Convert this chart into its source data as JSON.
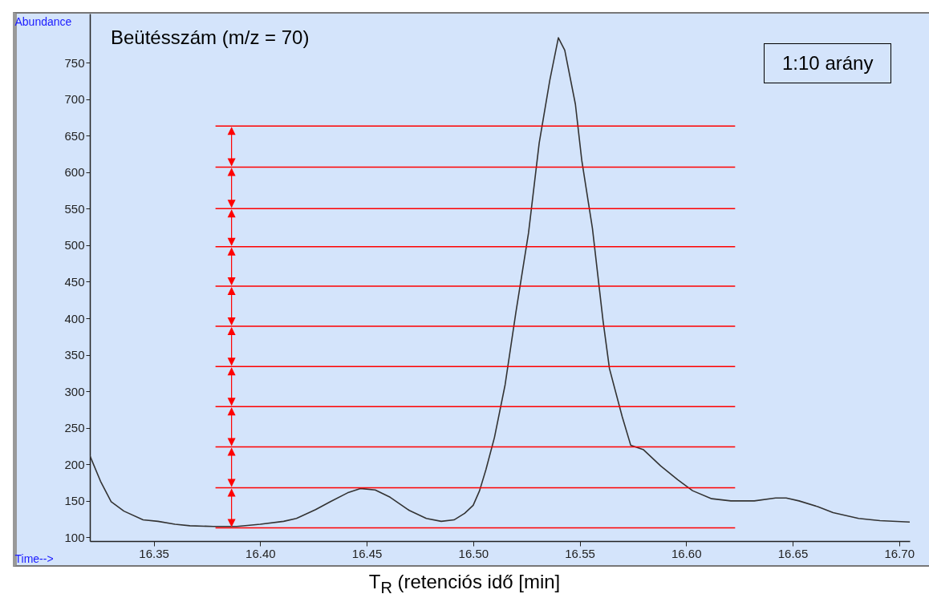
{
  "chart_data": {
    "type": "line",
    "xlabel": "Time-->",
    "ylabel": "Abundance",
    "annotations": [
      "Beütésszám (m/z = 70)",
      "1:10 arány",
      "T$_{R}$ (retenciós idő [min]"
    ],
    "xlim": [
      16.32,
      16.705
    ],
    "ylim": [
      95,
      817
    ],
    "xticks": [
      {
        "value": 16.35,
        "label": "16.35"
      },
      {
        "value": 16.4,
        "label": "16.40"
      },
      {
        "value": 16.45,
        "label": "16.45"
      },
      {
        "value": 16.5,
        "label": "16.50"
      },
      {
        "value": 16.55,
        "label": "16.55"
      },
      {
        "value": 16.6,
        "label": "16.60"
      },
      {
        "value": 16.65,
        "label": "16.65"
      },
      {
        "value": 16.7,
        "label": "16.70"
      }
    ],
    "yticks": [
      100,
      150,
      200,
      250,
      300,
      350,
      400,
      450,
      500,
      550,
      600,
      650,
      700,
      750
    ],
    "series": [
      {
        "color": "#333333",
        "x": [
          16.32,
          16.325,
          16.33,
          16.336,
          16.345,
          16.352,
          16.36,
          16.367,
          16.378,
          16.389,
          16.4,
          16.411,
          16.417,
          16.426,
          16.433,
          16.441,
          16.447,
          16.454,
          16.461,
          16.47,
          16.478,
          16.485,
          16.491,
          16.496,
          16.5,
          16.503,
          16.506,
          16.51,
          16.515,
          16.52,
          16.526,
          16.531,
          16.536,
          16.54,
          16.543,
          16.548,
          16.551,
          16.556,
          16.561,
          16.564,
          16.57,
          16.574,
          16.58,
          16.588,
          16.596,
          16.603,
          16.612,
          16.621,
          16.632,
          16.642,
          16.647,
          16.653,
          16.662,
          16.669,
          16.681,
          16.691,
          16.705
        ],
        "values": [
          212,
          177,
          149,
          136,
          124,
          122,
          118,
          116,
          115,
          115,
          118,
          122,
          126,
          138,
          149,
          161,
          167,
          165,
          155,
          137,
          126,
          122,
          124,
          133,
          144,
          164,
          193,
          237,
          309,
          407,
          517,
          640,
          726,
          784,
          767,
          693,
          616,
          523,
          396,
          331,
          265,
          226,
          220,
          198,
          179,
          164,
          153,
          150,
          150,
          154,
          154,
          150,
          142,
          134,
          126,
          123,
          121
        ]
      },
      {
        "color": "#ff0000",
        "x": [
          16.379,
          16.623
        ],
        "values": [
          663,
          663
        ]
      },
      {
        "color": "#ff0000",
        "x": [
          16.379,
          16.623
        ],
        "values": [
          607,
          607
        ]
      },
      {
        "color": "#ff0000",
        "x": [
          16.379,
          16.623
        ],
        "values": [
          550,
          550
        ]
      },
      {
        "color": "#ff0000",
        "x": [
          16.379,
          16.623
        ],
        "values": [
          498,
          498
        ]
      },
      {
        "color": "#ff0000",
        "x": [
          16.379,
          16.623
        ],
        "values": [
          444,
          444
        ]
      },
      {
        "color": "#ff0000",
        "x": [
          16.379,
          16.623
        ],
        "values": [
          389,
          389
        ]
      },
      {
        "color": "#ff0000",
        "x": [
          16.379,
          16.623
        ],
        "values": [
          334,
          334
        ]
      },
      {
        "color": "#ff0000",
        "x": [
          16.379,
          16.623
        ],
        "values": [
          279,
          279
        ]
      },
      {
        "color": "#ff0000",
        "x": [
          16.379,
          16.623
        ],
        "values": [
          224,
          224
        ]
      },
      {
        "color": "#ff0000",
        "x": [
          16.379,
          16.623
        ],
        "values": [
          168,
          168
        ]
      },
      {
        "color": "#ff0000",
        "x": [
          16.379,
          16.623
        ],
        "values": [
          113,
          113
        ]
      }
    ]
  }
}
